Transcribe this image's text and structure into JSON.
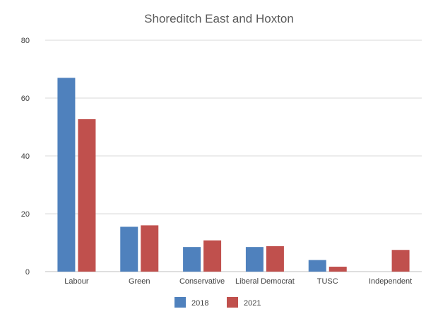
{
  "chart_data": {
    "type": "bar",
    "title": "Shoreditch East and Hoxton",
    "xlabel": "",
    "ylabel": "",
    "ylim": [
      0,
      80
    ],
    "yticks": [
      0,
      20,
      40,
      60,
      80
    ],
    "grid": true,
    "legend_position": "bottom",
    "categories": [
      "Labour",
      "Green",
      "Conservative",
      "Liberal Democrat",
      "TUSC",
      "Independent"
    ],
    "series": [
      {
        "name": "2018",
        "color": "#4f81bd",
        "values": [
          67,
          15.5,
          8.5,
          8.5,
          4,
          null
        ]
      },
      {
        "name": "2021",
        "color": "#c0504d",
        "values": [
          52.7,
          16,
          10.8,
          8.8,
          1.7,
          7.5
        ]
      }
    ]
  }
}
